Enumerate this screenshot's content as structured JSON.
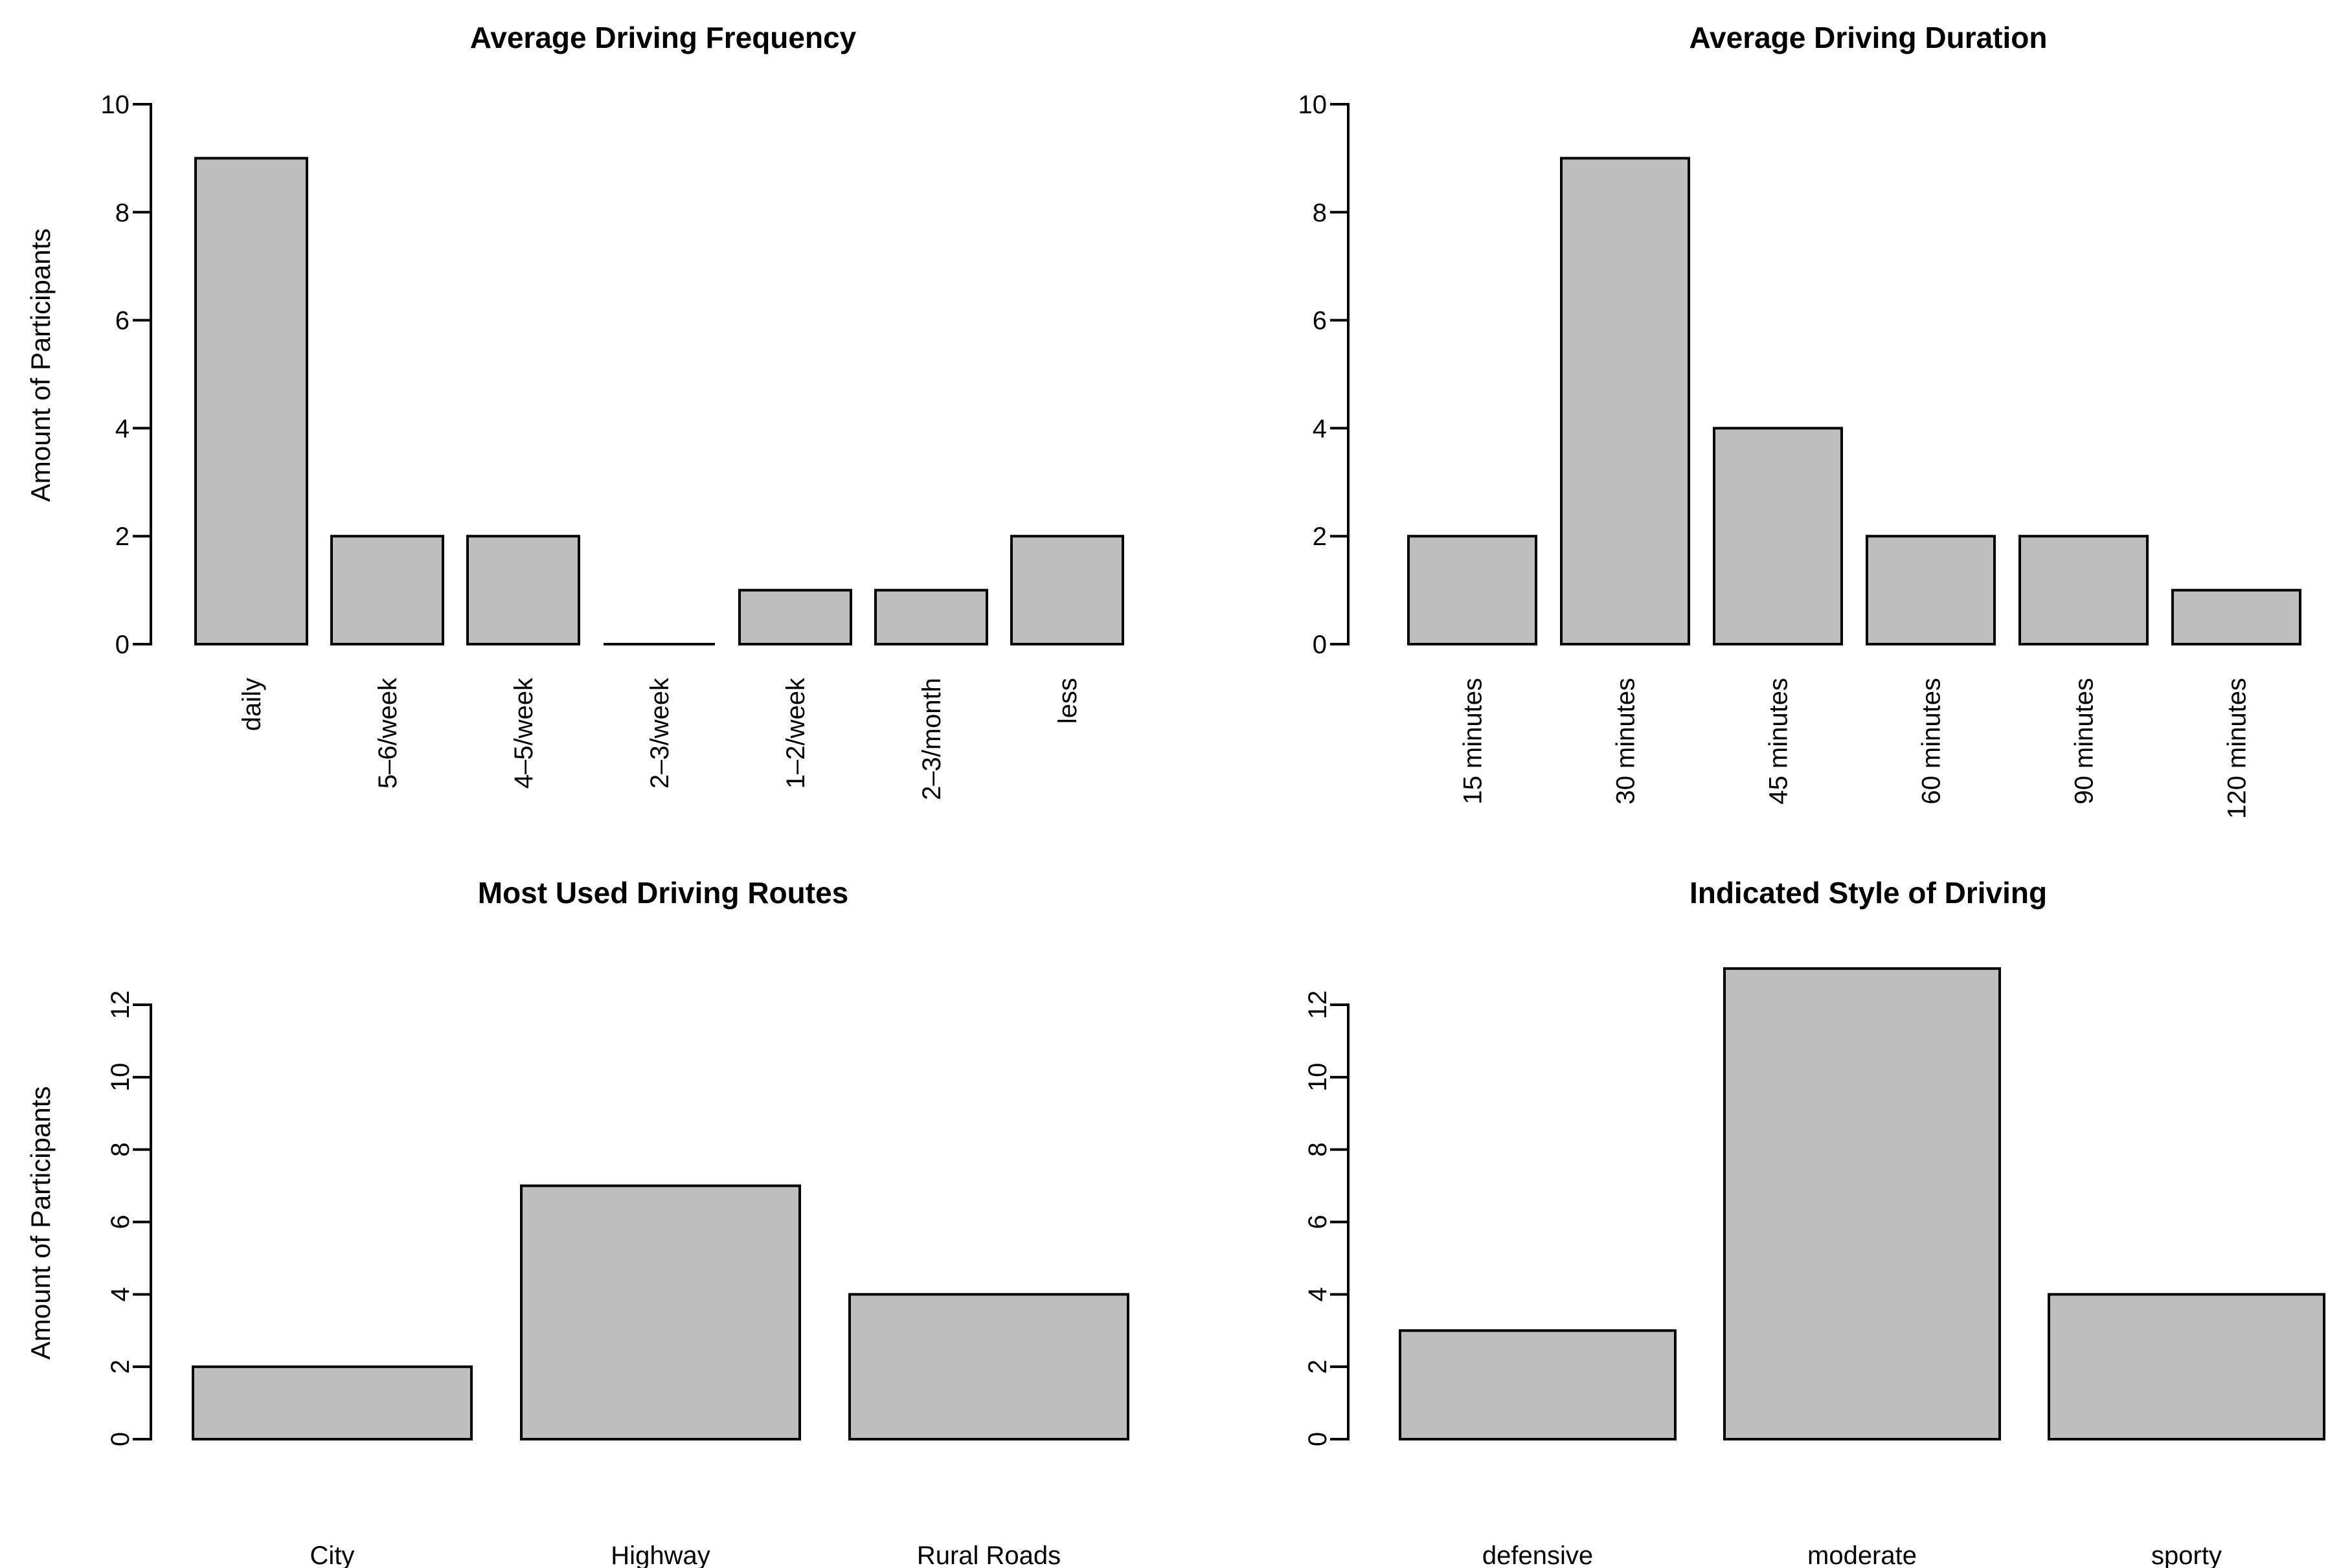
{
  "figure": {
    "background": "#ffffff",
    "bar_fill": "#bebebe",
    "bar_stroke": "#000000",
    "axis_color": "#000000",
    "text_color": "#000000"
  },
  "chart_data": [
    {
      "id": "average-driving-frequency",
      "type": "bar",
      "title": "Average Driving Frequency",
      "xlabel": "",
      "ylabel": "Amount of Participants",
      "categories": [
        "daily",
        "5–6/week",
        "4–5/week",
        "2–3/week",
        "1–2/week",
        "2–3/month",
        "less"
      ],
      "values": [
        9,
        2,
        2,
        0,
        1,
        1,
        2
      ],
      "yticks": [
        0,
        2,
        4,
        6,
        8,
        10
      ],
      "ylim": [
        0,
        10
      ],
      "grid": false,
      "legend": "none",
      "x_tick_label_orientation": "vertical",
      "y_tick_label_orientation": "horizontal"
    },
    {
      "id": "average-driving-duration",
      "type": "bar",
      "title": "Average Driving Duration",
      "xlabel": "",
      "ylabel": "",
      "categories": [
        "15 minutes",
        "30 minutes",
        "45 minutes",
        "60 minutes",
        "90 minutes",
        "120 minutes"
      ],
      "values": [
        2,
        9,
        4,
        2,
        2,
        1
      ],
      "yticks": [
        0,
        2,
        4,
        6,
        8,
        10
      ],
      "ylim": [
        0,
        10
      ],
      "grid": false,
      "legend": "none",
      "x_tick_label_orientation": "vertical",
      "y_tick_label_orientation": "horizontal"
    },
    {
      "id": "most-used-driving-routes",
      "type": "bar",
      "title": "Most Used Driving Routes",
      "xlabel": "",
      "ylabel": "Amount of Participants",
      "categories": [
        "City",
        "Highway",
        "Rural Roads"
      ],
      "values": [
        2,
        7,
        4
      ],
      "yticks": [
        0,
        2,
        4,
        6,
        8,
        10,
        12
      ],
      "ylim": [
        0,
        12
      ],
      "grid": false,
      "legend": "none",
      "x_tick_label_orientation": "horizontal",
      "y_tick_label_orientation": "vertical"
    },
    {
      "id": "indicated-style-of-driving",
      "type": "bar",
      "title": "Indicated Style of Driving",
      "xlabel": "",
      "ylabel": "",
      "categories": [
        "defensive",
        "moderate",
        "sporty"
      ],
      "values": [
        3,
        13,
        4
      ],
      "yticks": [
        0,
        2,
        4,
        6,
        8,
        10,
        12
      ],
      "ylim": [
        0,
        12
      ],
      "grid": false,
      "legend": "none",
      "x_tick_label_orientation": "horizontal",
      "y_tick_label_orientation": "vertical"
    }
  ]
}
